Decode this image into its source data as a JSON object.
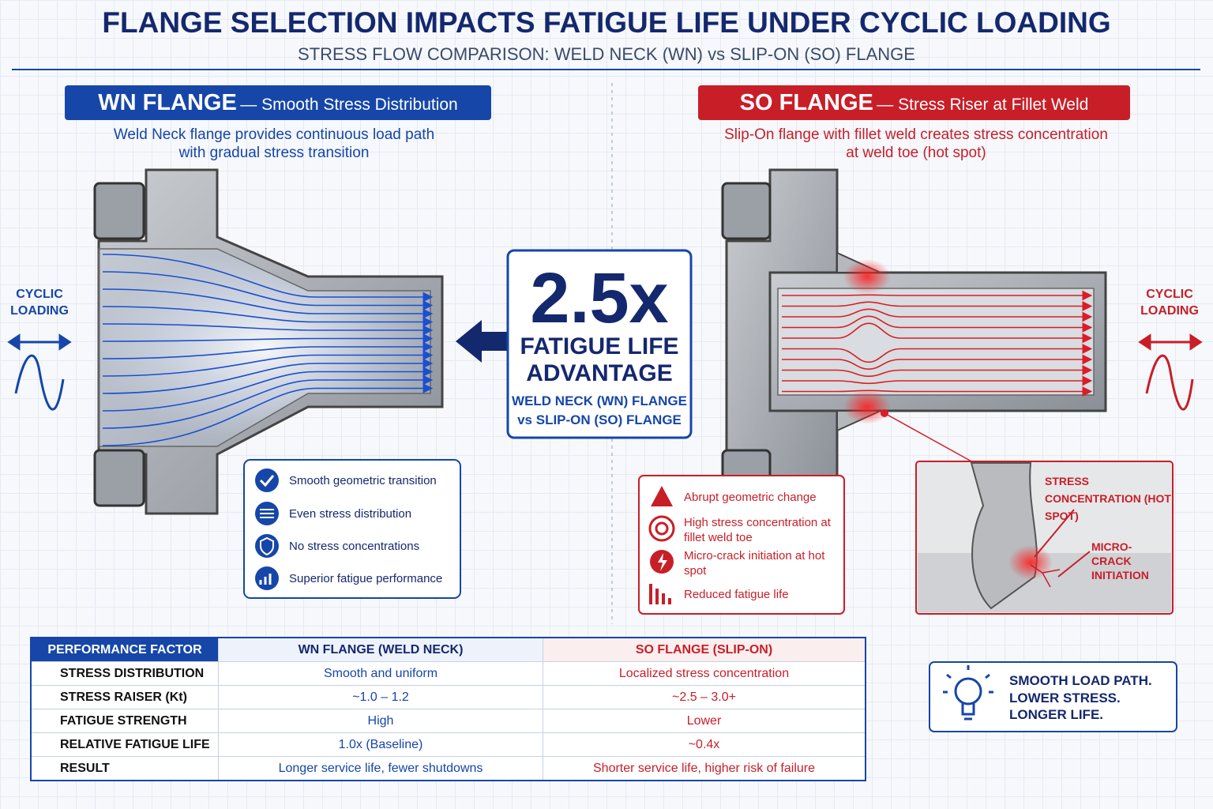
{
  "header": {
    "title": "FLANGE SELECTION IMPACTS FATIGUE LIFE UNDER CYCLIC LOADING",
    "subtitle": "STRESS FLOW COMPARISON: WELD NECK (WN) vs SLIP-ON (SO) FLANGE"
  },
  "wn": {
    "name": "WN FLANGE",
    "tagline": "— Smooth Stress Distribution",
    "description": [
      "Weld Neck flange provides continuous load path",
      "with gradual stress transition"
    ],
    "loading": "CYCLIC LOADING",
    "features": [
      "Smooth geometric transition",
      "Even stress distribution",
      "No stress concentrations",
      "Superior fatigue performance"
    ]
  },
  "so": {
    "name": "SO FLANGE",
    "tagline": "— Stress Riser at Fillet Weld",
    "description": [
      "Slip-On flange with fillet weld creates stress concentration",
      "at weld toe (hot spot)"
    ],
    "loading": "CYCLIC LOADING",
    "features": [
      "Abrupt geometric change",
      "High stress concentration at fillet weld toe",
      "Micro-crack initiation at hot spot",
      "Reduced fatigue life"
    ],
    "callouts": [
      "STRESS CONCENTRATION (HOT SPOT)",
      "MICRO-CRACK INITIATION"
    ]
  },
  "advantage": {
    "ratio": "2.5x",
    "label": [
      "FATIGUE LIFE",
      "ADVANTAGE"
    ],
    "comparison": [
      "WELD NECK (WN) FLANGE",
      "vs SLIP-ON (SO) FLANGE"
    ]
  },
  "table": {
    "header": [
      "PERFORMANCE FACTOR",
      "WN FLANGE (WELD NECK)",
      "SO FLANGE (SLIP-ON)"
    ],
    "rows": [
      [
        "STRESS DISTRIBUTION",
        "Smooth and uniform",
        "Localized stress concentration"
      ],
      [
        "STRESS RAISER (Kt)",
        "~1.0 – 1.2",
        "~2.5 – 3.0+"
      ],
      [
        "FATIGUE STRENGTH",
        "High",
        "Lower"
      ],
      [
        "RELATIVE FATIGUE LIFE",
        "1.0x (Baseline)",
        "~0.4x"
      ],
      [
        "RESULT",
        "Longer service life, fewer shutdowns",
        "Shorter service life, higher risk of failure"
      ]
    ]
  },
  "tip": {
    "lines": [
      "SMOOTH LOAD PATH.",
      "LOWER STRESS.",
      "LONGER LIFE."
    ]
  }
}
